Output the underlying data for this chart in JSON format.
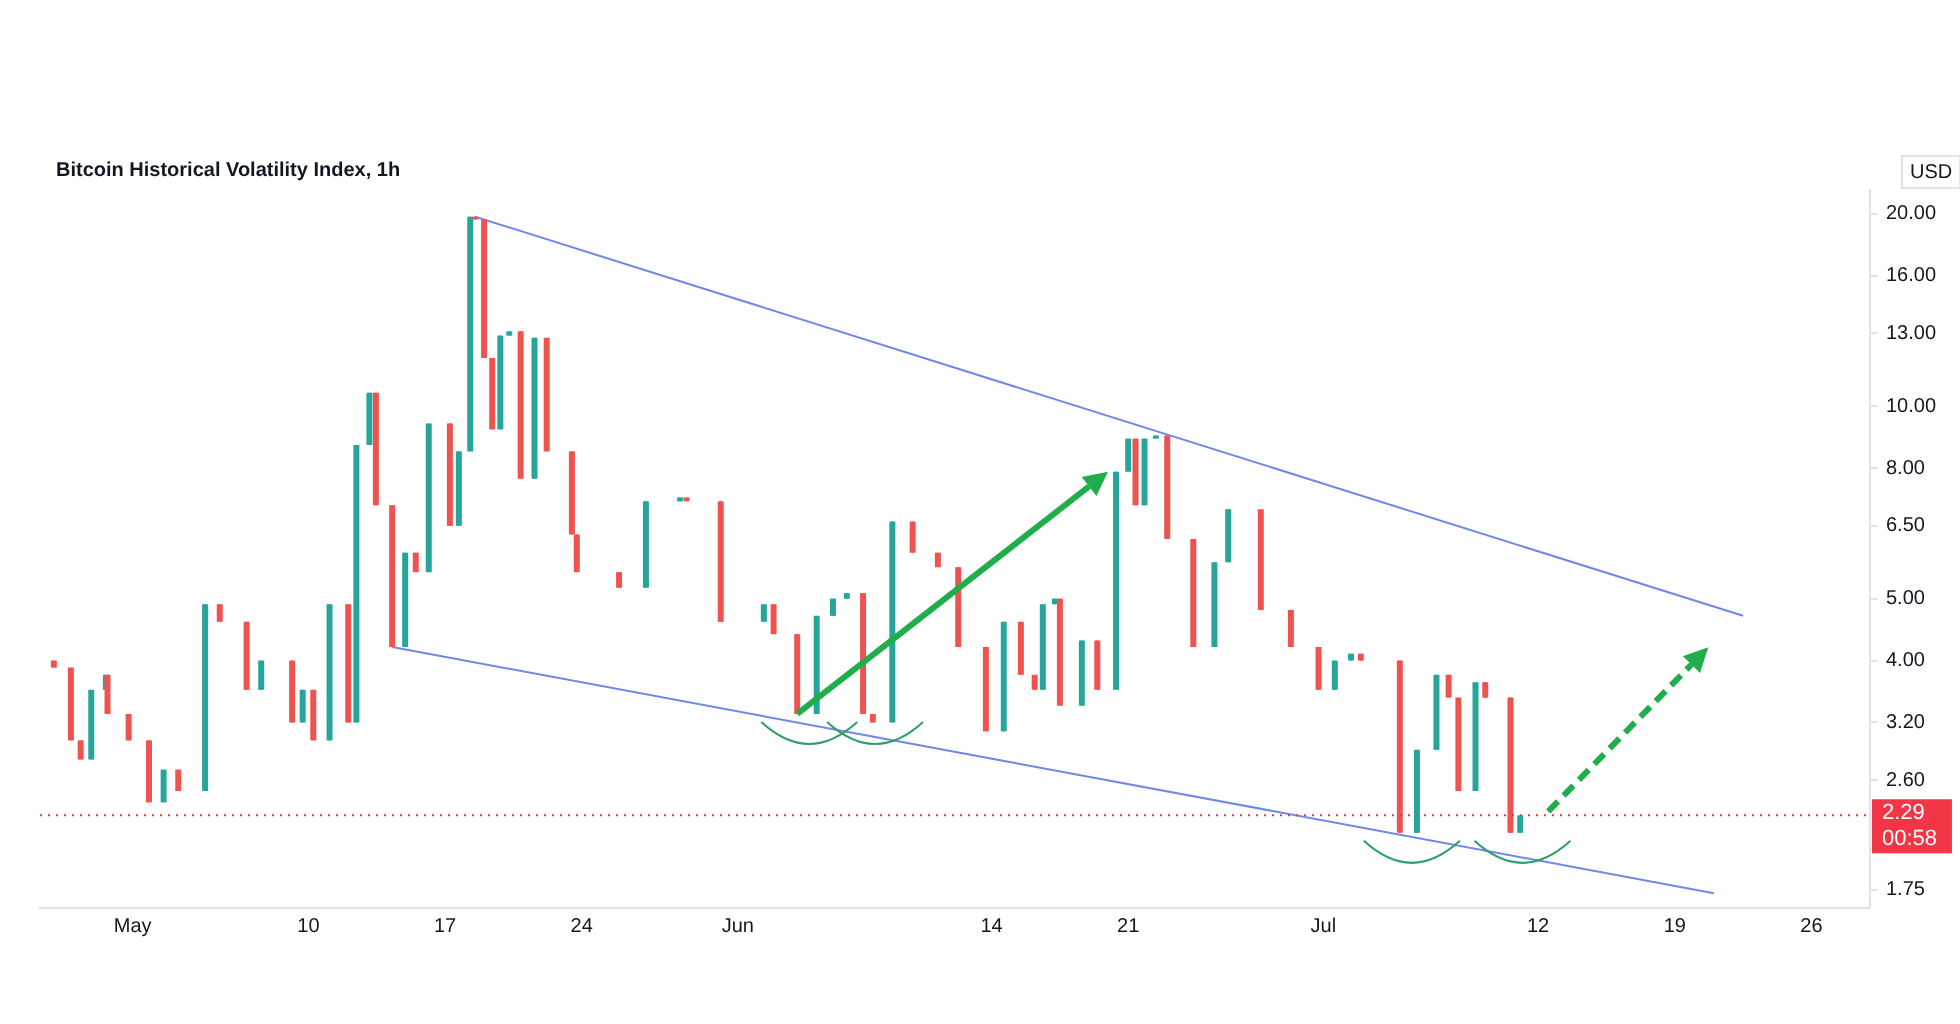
{
  "chart_data": {
    "type": "candlestick",
    "title": "Bitcoin Historical Volatility Index, 1h",
    "ylabel": "USD",
    "x": [
      "--04-26T23:00",
      "--04-27T20:00",
      "--04-28T08:00",
      "--04-28T21:00",
      "--04-29T15:00",
      "--04-29T17:00",
      "--04-30T19:00",
      "--05-01T20:00",
      "--05-02T14:00",
      "--05-03T08:00",
      "--05-04T17:00",
      "--05-05T11:00",
      "--05-06T20:00",
      "--05-07T14:00",
      "--05-09T04:00",
      "--05-09T17:00",
      "--05-10T06:00",
      "--05-11T02:00",
      "--05-12T01:00",
      "--05-12T11:00",
      "--05-13T03:00",
      "--05-13T11:00",
      "--05-14T07:00",
      "--05-14T23:00",
      "--05-15T12:00",
      "--05-16T04:00",
      "--05-17T06:00",
      "--05-17T17:00",
      "--05-18T07:00",
      "--05-18T13:00",
      "--05-19T00:00",
      "--05-19T10:00",
      "--05-19T20:00",
      "--05-20T07:00",
      "--05-20T21:00",
      "--05-21T14:00",
      "--05-22T05:00",
      "--05-23T12:00",
      "--05-23T18:00",
      "--05-25T22:00",
      "--05-27T07:00",
      "--05-29T01:00",
      "--05-29T09:00",
      "--05-31T03:00",
      "--06-02T08:00",
      "--06-02T20:00",
      "--06-04T01:00",
      "--06-05T01:00",
      "--06-05T21:00",
      "--06-06T14:00",
      "--06-07T10:00",
      "--06-07T22:00",
      "--06-08T22:00",
      "--06-09T23:00",
      "--06-11T06:00",
      "--06-12T07:00",
      "--06-13T17:00",
      "--06-14T15:00",
      "--06-15T12:00",
      "--06-16T05:00",
      "--06-16T15:00",
      "--06-17T06:00",
      "--06-17T12:00",
      "--06-18T15:00",
      "--06-19T10:00",
      "--06-20T09:00",
      "--06-21T00:00",
      "--06-21T09:00",
      "--06-21T20:00",
      "--06-22T10:00",
      "--06-23T00:00",
      "--06-24T08:00",
      "--06-25T10:00",
      "--06-26T03:00",
      "--06-27T19:00",
      "--06-29T08:00",
      "--06-30T18:00",
      "--07-01T14:00",
      "--07-02T10:00",
      "--07-02T22:00",
      "--07-04T22:00",
      "--07-05T19:00",
      "--07-06T19:00",
      "--07-07T10:00",
      "--07-07T22:00",
      "--07-08T19:00",
      "--07-09T07:00",
      "--07-10T14:00",
      "--07-11T02:00"
    ],
    "ohlc": [
      [
        4.0,
        4.0,
        3.9,
        3.9
      ],
      [
        3.9,
        3.9,
        3.0,
        3.0
      ],
      [
        3.0,
        3.0,
        2.8,
        2.8
      ],
      [
        2.8,
        3.6,
        2.8,
        3.6
      ],
      [
        3.6,
        3.8,
        3.6,
        3.8
      ],
      [
        3.8,
        3.8,
        3.3,
        3.3
      ],
      [
        3.3,
        3.3,
        3.0,
        3.0
      ],
      [
        3.0,
        3.0,
        2.4,
        2.4
      ],
      [
        2.4,
        2.7,
        2.4,
        2.7
      ],
      [
        2.7,
        2.7,
        2.5,
        2.5
      ],
      [
        2.5,
        4.9,
        2.5,
        4.9
      ],
      [
        4.9,
        4.9,
        4.6,
        4.6
      ],
      [
        4.6,
        4.6,
        3.6,
        3.6
      ],
      [
        3.6,
        4.0,
        3.6,
        4.0
      ],
      [
        4.0,
        4.0,
        3.2,
        3.2
      ],
      [
        3.2,
        3.6,
        3.2,
        3.6
      ],
      [
        3.6,
        3.6,
        3.0,
        3.0
      ],
      [
        3.0,
        4.9,
        3.0,
        4.9
      ],
      [
        4.9,
        4.9,
        3.2,
        3.2
      ],
      [
        3.2,
        8.7,
        3.2,
        8.7
      ],
      [
        8.7,
        10.5,
        8.7,
        10.5
      ],
      [
        10.5,
        10.5,
        7.0,
        7.0
      ],
      [
        7.0,
        7.0,
        4.2,
        4.2
      ],
      [
        4.2,
        5.9,
        4.2,
        5.9
      ],
      [
        5.9,
        5.9,
        5.5,
        5.5
      ],
      [
        5.5,
        9.4,
        5.5,
        9.4
      ],
      [
        9.4,
        9.4,
        6.5,
        6.5
      ],
      [
        6.5,
        8.5,
        6.5,
        8.5
      ],
      [
        8.5,
        19.8,
        8.5,
        19.8
      ],
      [
        19.8,
        19.8,
        19.6,
        19.6
      ],
      [
        19.6,
        19.6,
        11.9,
        11.9
      ],
      [
        11.9,
        11.9,
        9.2,
        9.2
      ],
      [
        9.2,
        12.9,
        9.2,
        12.9
      ],
      [
        12.9,
        13.1,
        12.9,
        13.1
      ],
      [
        13.1,
        13.1,
        7.7,
        7.7
      ],
      [
        7.7,
        12.8,
        7.7,
        12.8
      ],
      [
        12.8,
        12.8,
        8.5,
        8.5
      ],
      [
        8.5,
        8.5,
        6.3,
        6.3
      ],
      [
        6.3,
        6.3,
        5.5,
        5.5
      ],
      [
        5.5,
        5.5,
        5.2,
        5.2
      ],
      [
        5.2,
        7.1,
        5.2,
        7.1
      ],
      [
        7.1,
        7.2,
        7.1,
        7.2
      ],
      [
        7.2,
        7.2,
        7.1,
        7.1
      ],
      [
        7.1,
        7.1,
        4.6,
        4.6
      ],
      [
        4.6,
        4.9,
        4.6,
        4.9
      ],
      [
        4.9,
        4.9,
        4.4,
        4.4
      ],
      [
        4.4,
        4.4,
        3.3,
        3.3
      ],
      [
        3.3,
        4.7,
        3.3,
        4.7
      ],
      [
        4.7,
        5.0,
        4.7,
        5.0
      ],
      [
        5.0,
        5.1,
        5.0,
        5.1
      ],
      [
        5.1,
        5.1,
        3.3,
        3.3
      ],
      [
        3.3,
        3.3,
        3.2,
        3.2
      ],
      [
        3.2,
        6.6,
        3.2,
        6.6
      ],
      [
        6.6,
        6.6,
        5.9,
        5.9
      ],
      [
        5.9,
        5.9,
        5.6,
        5.6
      ],
      [
        5.6,
        5.6,
        4.2,
        4.2
      ],
      [
        4.2,
        4.2,
        3.1,
        3.1
      ],
      [
        3.1,
        4.6,
        3.1,
        4.6
      ],
      [
        4.6,
        4.6,
        3.8,
        3.8
      ],
      [
        3.8,
        3.8,
        3.6,
        3.6
      ],
      [
        3.6,
        4.9,
        3.6,
        4.9
      ],
      [
        4.9,
        5.0,
        4.9,
        5.0
      ],
      [
        5.0,
        5.0,
        3.4,
        3.4
      ],
      [
        3.4,
        4.3,
        3.4,
        4.3
      ],
      [
        4.3,
        4.3,
        3.6,
        3.6
      ],
      [
        3.6,
        7.9,
        3.6,
        7.9
      ],
      [
        7.9,
        8.9,
        7.9,
        8.9
      ],
      [
        8.9,
        8.9,
        7.0,
        7.0
      ],
      [
        7.0,
        8.9,
        7.0,
        8.9
      ],
      [
        8.9,
        9.0,
        8.9,
        9.0
      ],
      [
        9.0,
        9.0,
        6.2,
        6.2
      ],
      [
        6.2,
        6.2,
        4.2,
        4.2
      ],
      [
        4.2,
        5.7,
        4.2,
        5.7
      ],
      [
        5.7,
        6.9,
        5.7,
        6.9
      ],
      [
        6.9,
        6.9,
        4.8,
        4.8
      ],
      [
        4.8,
        4.8,
        4.2,
        4.2
      ],
      [
        4.2,
        4.2,
        3.6,
        3.6
      ],
      [
        3.6,
        4.0,
        3.6,
        4.0
      ],
      [
        4.0,
        4.1,
        4.0,
        4.1
      ],
      [
        4.1,
        4.1,
        4.0,
        4.0
      ],
      [
        4.0,
        4.0,
        2.15,
        2.15
      ],
      [
        2.15,
        2.9,
        2.15,
        2.9
      ],
      [
        2.9,
        3.8,
        2.9,
        3.8
      ],
      [
        3.8,
        3.8,
        3.5,
        3.5
      ],
      [
        3.5,
        3.5,
        2.5,
        2.5
      ],
      [
        2.5,
        3.7,
        2.5,
        3.7
      ],
      [
        3.7,
        3.7,
        3.5,
        3.5
      ],
      [
        3.5,
        3.5,
        2.15,
        2.15
      ],
      [
        2.15,
        2.29,
        2.15,
        2.29
      ]
    ],
    "colors": [
      "#ef5350",
      "#ef5350",
      "#ef5350",
      "#26a69a",
      "#26a69a",
      "#ef5350",
      "#ef5350",
      "#ef5350",
      "#26a69a",
      "#ef5350",
      "#26a69a",
      "#ef5350",
      "#ef5350",
      "#26a69a",
      "#ef5350",
      "#26a69a",
      "#ef5350",
      "#26a69a",
      "#ef5350",
      "#26a69a",
      "#26a69a",
      "#ef5350",
      "#ef5350",
      "#26a69a",
      "#ef5350",
      "#26a69a",
      "#ef5350",
      "#26a69a",
      "#26a69a",
      "#ef5350",
      "#ef5350",
      "#ef5350",
      "#26a69a",
      "#26a69a",
      "#ef5350",
      "#26a69a",
      "#ef5350",
      "#ef5350",
      "#ef5350",
      "#ef5350",
      "#26a69a",
      "#26a69a",
      "#ef5350",
      "#ef5350",
      "#26a69a",
      "#ef5350",
      "#ef5350",
      "#26a69a",
      "#26a69a",
      "#26a69a",
      "#ef5350",
      "#ef5350",
      "#26a69a",
      "#ef5350",
      "#ef5350",
      "#ef5350",
      "#ef5350",
      "#26a69a",
      "#ef5350",
      "#ef5350",
      "#26a69a",
      "#26a69a",
      "#ef5350",
      "#26a69a",
      "#ef5350",
      "#26a69a",
      "#26a69a",
      "#ef5350",
      "#26a69a",
      "#26a69a",
      "#ef5350",
      "#ef5350",
      "#26a69a",
      "#26a69a",
      "#ef5350",
      "#ef5350",
      "#ef5350",
      "#26a69a",
      "#26a69a",
      "#ef5350",
      "#ef5350",
      "#26a69a",
      "#26a69a",
      "#ef5350",
      "#ef5350",
      "#26a69a",
      "#ef5350",
      "#ef5350",
      "#26a69a"
    ],
    "series": [
      {
        "type": "line",
        "color": "#7088e6",
        "x": [
          "--05-18T13:00",
          "--07-22T12:00"
        ],
        "values": [
          19.8,
          4.7
        ]
      },
      {
        "type": "line",
        "color": "#7088e6",
        "x": [
          "--05-14T07:00",
          "--07-21T00:00"
        ],
        "values": [
          4.2,
          1.73
        ]
      }
    ],
    "xlim": [
      "--04-26T06:00",
      "--07-29"
    ],
    "xticks": [
      {
        "value": "--05-01",
        "label": "May"
      },
      {
        "value": "--05-10",
        "label": "10"
      },
      {
        "value": "--05-17",
        "label": "17"
      },
      {
        "value": "--05-24",
        "label": "24"
      },
      {
        "value": "--06-01",
        "label": "Jun"
      },
      {
        "value": "--06-14",
        "label": "14"
      },
      {
        "value": "--06-21",
        "label": "21"
      },
      {
        "value": "--07-01",
        "label": "Jul"
      },
      {
        "value": "--07-12",
        "label": "12"
      },
      {
        "value": "--07-19",
        "label": "19"
      },
      {
        "value": "--07-26",
        "label": "26"
      }
    ],
    "log": "y",
    "ylim": [
      1.64,
      21.8
    ],
    "yticks": [
      {
        "value": 20,
        "label": "20.00"
      },
      {
        "value": 16,
        "label": "16.00"
      },
      {
        "value": 13,
        "label": "13.00"
      },
      {
        "value": 10,
        "label": "10.00"
      },
      {
        "value": 8,
        "label": "8.00"
      },
      {
        "value": 6.5,
        "label": "6.50"
      },
      {
        "value": 5,
        "label": "5.00"
      },
      {
        "value": 4,
        "label": "4.00"
      },
      {
        "value": 3.2,
        "label": "3.20"
      },
      {
        "value": 2.6,
        "label": "2.60"
      },
      {
        "value": 1.75,
        "label": "1.75"
      }
    ],
    "ref_lines": [
      {
        "axis": "y",
        "value": 2.29,
        "label": "2.29",
        "color": "#f23645",
        "line_style": "dotted"
      }
    ],
    "annotations": [
      "00:58"
    ],
    "grid": false,
    "legend": false
  }
}
